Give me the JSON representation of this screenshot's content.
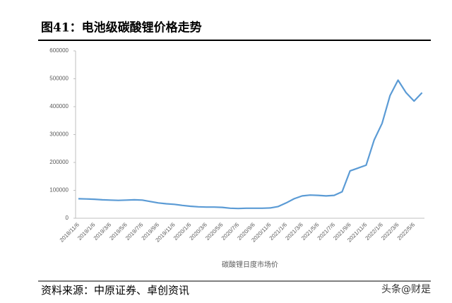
{
  "chart_data": {
    "type": "line",
    "title": "图41：电池级碳酸锂价格走势",
    "source": "资料来源：中原证券、卓创资讯",
    "watermark": "头条@财是",
    "categories": [
      "2018/11/6",
      null,
      "2019/1/6",
      null,
      "2019/3/6",
      null,
      "2019/5/6",
      null,
      "2019/7/6",
      null,
      "2019/9/6",
      null,
      "2019/11/6",
      null,
      "2020/1/6",
      null,
      "2020/3/6",
      null,
      "2020/5/6",
      null,
      "2020/7/6",
      null,
      "2020/9/6",
      null,
      "2020/11/6",
      null,
      "2021/1/6",
      null,
      "2021/3/6",
      null,
      "2021/5/6",
      null,
      "2021/7/6",
      null,
      "2021/9/6",
      null,
      "2021/11/6",
      null,
      "2022/1/6",
      null,
      "2022/3/6",
      null,
      "2022/5/6",
      null
    ],
    "series": [
      {
        "name": "碳酸锂日度市场价",
        "color": "#5b9bd5",
        "values": [
          70000,
          69000,
          68000,
          66000,
          65000,
          64000,
          65000,
          66000,
          65000,
          60000,
          55000,
          52000,
          50000,
          46000,
          43000,
          41000,
          40000,
          40000,
          39000,
          36000,
          35000,
          36000,
          36000,
          36000,
          37000,
          42000,
          55000,
          70000,
          80000,
          83000,
          82000,
          80000,
          82000,
          95000,
          170000,
          180000,
          190000,
          280000,
          340000,
          440000,
          495000,
          450000,
          420000,
          450000
        ]
      }
    ],
    "ylim": [
      0,
      600000
    ],
    "yticks": [
      0,
      100000,
      200000,
      300000,
      400000,
      500000,
      600000
    ],
    "grid": false
  }
}
